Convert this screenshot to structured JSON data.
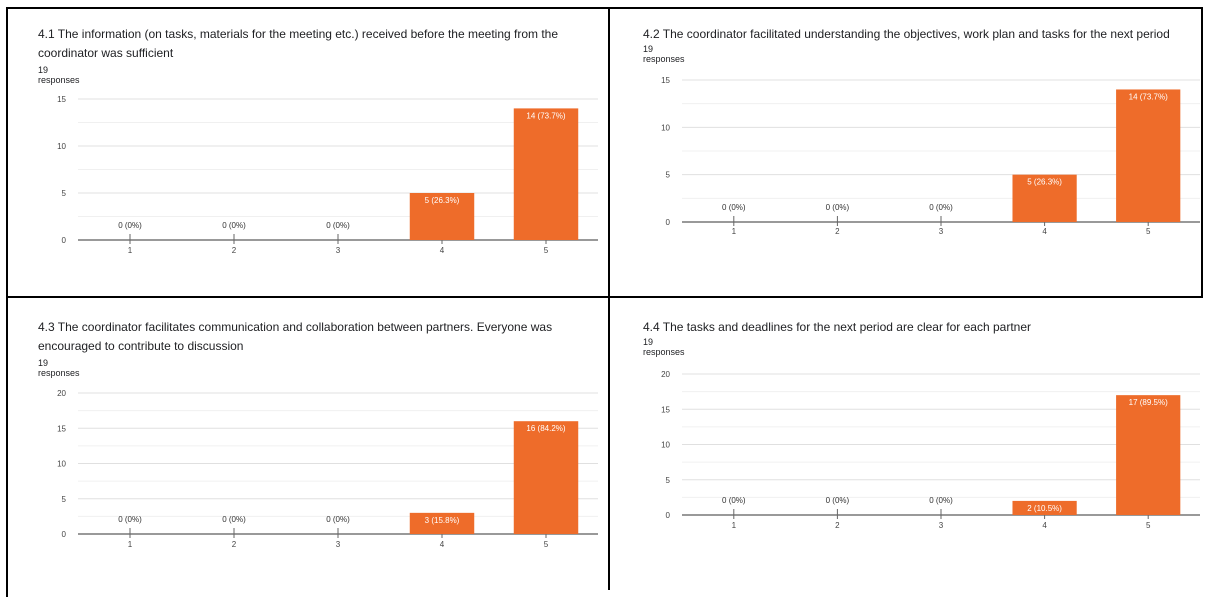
{
  "chart_data": [
    {
      "type": "bar",
      "title": "4.1 The information (on tasks, materials for the meeting etc.) received before the meeting from the coordinator was sufficient",
      "subtitle": "19 responses",
      "categories": [
        "1",
        "2",
        "3",
        "4",
        "5"
      ],
      "values": [
        0,
        0,
        0,
        5,
        14
      ],
      "labels": [
        "0 (0%)",
        "0 (0%)",
        "0 (0%)",
        "5 (26.3%)",
        "14 (73.7%)"
      ],
      "yticks": [
        "0",
        "5",
        "10",
        "15"
      ],
      "ylim": [
        0,
        15
      ],
      "color": "#ee6c2a"
    },
    {
      "type": "bar",
      "title": "4.2 The coordinator facilitated understanding the objectives, work plan and tasks for the next period",
      "subtitle": "19 responses",
      "categories": [
        "1",
        "2",
        "3",
        "4",
        "5"
      ],
      "values": [
        0,
        0,
        0,
        5,
        14
      ],
      "labels": [
        "0 (0%)",
        "0 (0%)",
        "0 (0%)",
        "5 (26.3%)",
        "14 (73.7%)"
      ],
      "yticks": [
        "0",
        "5",
        "10",
        "15"
      ],
      "ylim": [
        0,
        15
      ],
      "color": "#ee6c2a"
    },
    {
      "type": "bar",
      "title": "4.3 The coordinator facilitates communication and collaboration between partners. Everyone was encouraged to contribute to discussion",
      "subtitle": "19 responses",
      "categories": [
        "1",
        "2",
        "3",
        "4",
        "5"
      ],
      "values": [
        0,
        0,
        0,
        3,
        16
      ],
      "labels": [
        "0 (0%)",
        "0 (0%)",
        "0 (0%)",
        "3 (15.8%)",
        "16 (84.2%)"
      ],
      "yticks": [
        "0",
        "5",
        "10",
        "15",
        "20"
      ],
      "ylim": [
        0,
        20
      ],
      "color": "#ee6c2a"
    },
    {
      "type": "bar",
      "title": "4.4 The tasks and deadlines for the next period are clear for each partner",
      "subtitle": "19 responses",
      "categories": [
        "1",
        "2",
        "3",
        "4",
        "5"
      ],
      "values": [
        0,
        0,
        0,
        2,
        17
      ],
      "labels": [
        "0 (0%)",
        "0 (0%)",
        "0 (0%)",
        "2 (10.5%)",
        "17 (89.5%)"
      ],
      "yticks": [
        "0",
        "5",
        "10",
        "15",
        "20"
      ],
      "ylim": [
        0,
        20
      ],
      "color": "#ee6c2a"
    }
  ]
}
